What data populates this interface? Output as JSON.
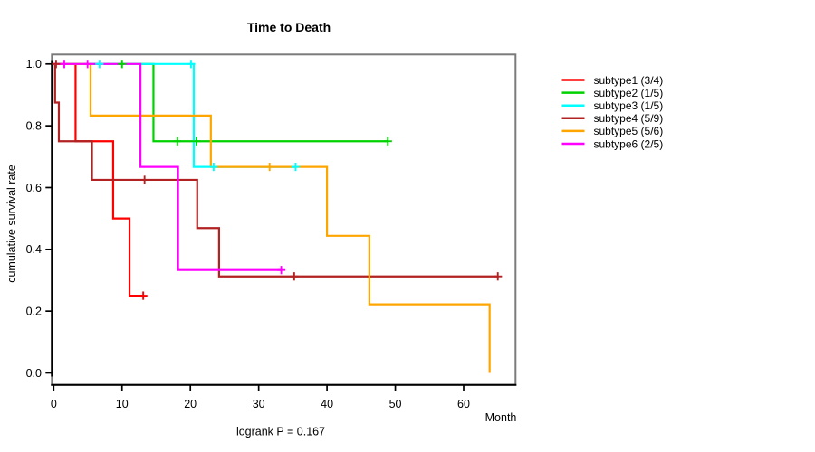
{
  "title": "Time to Death",
  "x_axis_label": "Month",
  "y_axis_label": "cumulative survival rate",
  "footnote": "logrank P = 0.167",
  "chart_data": {
    "type": "line",
    "style": "kaplan-meier-step",
    "title": "Time to Death",
    "xlabel": "Month",
    "ylabel": "cumulative survival rate",
    "xlim": [
      0,
      67.5
    ],
    "ylim": [
      0.0,
      1.0
    ],
    "grid": false,
    "legend_position": "right-outside",
    "annotation": "logrank P = 0.167",
    "x_ticks": [
      0,
      10,
      20,
      30,
      40,
      50,
      60
    ],
    "x_tick_labels": [
      "0",
      "10",
      "20",
      "30",
      "40",
      "50",
      "60"
    ],
    "y_ticks": [
      0.0,
      0.2,
      0.4,
      0.6,
      0.8,
      1.0
    ],
    "y_tick_labels": [
      "0.0",
      "0.2",
      "0.4",
      "0.6",
      "0.8",
      "1.0"
    ],
    "series": [
      {
        "name": "subtype1",
        "label": "subtype1 (3/4)",
        "events": "3/4",
        "color": "#ff0000",
        "start": [
          0,
          1.0
        ],
        "drops": [
          [
            3.2,
            0.75
          ],
          [
            8.7,
            0.5
          ],
          [
            11.1,
            0.25
          ]
        ],
        "end_month": 13.1,
        "censor_marks": [
          [
            13.1,
            0.25
          ]
        ]
      },
      {
        "name": "subtype2",
        "label": "subtype2 (1/5)",
        "events": "1/5",
        "color": "#00d200",
        "start": [
          0,
          1.0
        ],
        "drops": [
          [
            14.6,
            0.75
          ]
        ],
        "end_month": 48.9,
        "censor_marks": [
          [
            10.0,
            1.0
          ],
          [
            18.1,
            0.75
          ],
          [
            20.9,
            0.75
          ],
          [
            48.9,
            0.75
          ]
        ]
      },
      {
        "name": "subtype3",
        "label": "subtype3 (1/5)",
        "events": "1/5",
        "color": "#00ffff",
        "start": [
          0,
          1.0
        ],
        "drops": [
          [
            20.5,
            0.667
          ]
        ],
        "end_month": 35.4,
        "censor_marks": [
          [
            6.7,
            1.0
          ],
          [
            20.1,
            1.0
          ],
          [
            23.4,
            0.667
          ],
          [
            35.4,
            0.667
          ]
        ]
      },
      {
        "name": "subtype4",
        "label": "subtype4 (5/9)",
        "events": "5/9",
        "color": "#b22222",
        "start": [
          0,
          1.0
        ],
        "drops": [
          [
            0.2,
            0.875
          ],
          [
            0.75,
            0.75
          ],
          [
            5.6,
            0.625
          ],
          [
            21.0,
            0.469
          ],
          [
            24.2,
            0.3125
          ]
        ],
        "end_month": 65.0,
        "censor_marks": [
          [
            0.35,
            1.0
          ],
          [
            13.3,
            0.625
          ],
          [
            35.2,
            0.3125
          ],
          [
            65.0,
            0.3125
          ]
        ]
      },
      {
        "name": "subtype5",
        "label": "subtype5 (5/6)",
        "events": "5/6",
        "color": "#ffa500",
        "start": [
          0,
          1.0
        ],
        "drops": [
          [
            5.4,
            0.833
          ],
          [
            23.0,
            0.667
          ],
          [
            40.0,
            0.444
          ],
          [
            46.2,
            0.222
          ],
          [
            63.8,
            0.0
          ]
        ],
        "end_month": 63.8,
        "censor_marks": [
          [
            31.6,
            0.667
          ]
        ]
      },
      {
        "name": "subtype6",
        "label": "subtype6 (2/5)",
        "events": "2/5",
        "color": "#ff00ff",
        "start": [
          0,
          1.0
        ],
        "drops": [
          [
            12.7,
            0.667
          ],
          [
            18.2,
            0.333
          ]
        ],
        "end_month": 33.3,
        "censor_marks": [
          [
            1.55,
            1.0
          ],
          [
            4.95,
            1.0
          ],
          [
            33.3,
            0.333
          ]
        ]
      }
    ]
  }
}
